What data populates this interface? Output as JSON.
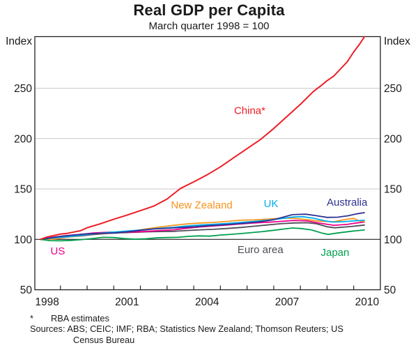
{
  "title": "Real GDP per Capita",
  "subtitle": "March quarter 1998 = 100",
  "y_axis_unit_label": "Index",
  "footnote": {
    "marker": "*",
    "text": "RBA estimates"
  },
  "sources": {
    "lines": [
      "Sources: ABS; CEIC; IMF; RBA; Statistics New Zealand; Thomson Reuters; US",
      "Census Bureau"
    ]
  },
  "chart_data": {
    "type": "line",
    "title": "Real GDP per Capita",
    "subtitle": "March quarter 1998 = 100",
    "xlabel": "",
    "ylabel": "Index",
    "legend": "inline-labels",
    "grid": "horizontal",
    "x_range": [
      1998.04,
      2011.0
    ],
    "ylim": [
      50,
      301.2
    ],
    "yticks": [
      50,
      100,
      150,
      200,
      250
    ],
    "gridlines_y": [
      150,
      200,
      250
    ],
    "baseline_y": 100,
    "xtick_years": [
      1999,
      2000,
      2001,
      2002,
      2003,
      2004,
      2005,
      2006,
      2007,
      2008,
      2009,
      2010
    ],
    "xtick_labels": [
      1998,
      2001,
      2004,
      2007,
      2010
    ],
    "series": [
      {
        "name": "Euro area",
        "label": "Euro area",
        "color": "#4d4e56",
        "label_anchor": [
          2006.5,
          90
        ],
        "points": [
          [
            1998.25,
            100
          ],
          [
            1998.75,
            101.3
          ],
          [
            1999.25,
            102.3
          ],
          [
            1999.75,
            103.5
          ],
          [
            2000.25,
            104.8
          ],
          [
            2000.75,
            105.8
          ],
          [
            2001.25,
            106.5
          ],
          [
            2001.75,
            107
          ],
          [
            2002.25,
            107.5
          ],
          [
            2002.75,
            107.8
          ],
          [
            2003.25,
            108
          ],
          [
            2003.75,
            108.8
          ],
          [
            2004.25,
            109.5
          ],
          [
            2004.75,
            110
          ],
          [
            2005.25,
            110.8
          ],
          [
            2005.75,
            111.8
          ],
          [
            2006.25,
            113
          ],
          [
            2006.75,
            114.3
          ],
          [
            2007.25,
            115.5
          ],
          [
            2007.75,
            116.3
          ],
          [
            2008.25,
            116.5
          ],
          [
            2008.6,
            115.5
          ],
          [
            2009.0,
            112.5
          ],
          [
            2009.3,
            111.5
          ],
          [
            2009.7,
            112.3
          ],
          [
            2010.0,
            113
          ],
          [
            2010.4,
            114.2
          ]
        ]
      },
      {
        "name": "US",
        "label": "US",
        "color": "#ec008c",
        "label_anchor": [
          1998.9,
          88.5
        ],
        "points": [
          [
            1998.25,
            100
          ],
          [
            1998.75,
            102.3
          ],
          [
            1999.25,
            103.8
          ],
          [
            1999.75,
            105
          ],
          [
            2000.25,
            106.3
          ],
          [
            2000.75,
            107
          ],
          [
            2001.25,
            107.3
          ],
          [
            2001.75,
            107.3
          ],
          [
            2002.25,
            108
          ],
          [
            2002.75,
            108.8
          ],
          [
            2003.25,
            109.5
          ],
          [
            2003.75,
            111
          ],
          [
            2004.25,
            112.3
          ],
          [
            2004.75,
            113.3
          ],
          [
            2005.25,
            114.3
          ],
          [
            2005.75,
            115.3
          ],
          [
            2006.25,
            116.3
          ],
          [
            2006.75,
            117
          ],
          [
            2007.25,
            117.8
          ],
          [
            2007.75,
            118.8
          ],
          [
            2008.25,
            118.3
          ],
          [
            2008.75,
            116
          ],
          [
            2009.25,
            114
          ],
          [
            2009.75,
            114.8
          ],
          [
            2010.1,
            116.3
          ],
          [
            2010.4,
            117.2
          ]
        ]
      },
      {
        "name": "New Zealand",
        "label": "New Zealand",
        "color": "#f7941d",
        "label_anchor": [
          2004.3,
          134
        ],
        "points": [
          [
            1998.25,
            100
          ],
          [
            1998.5,
            99.8
          ],
          [
            1998.75,
            100.3
          ],
          [
            1999.25,
            102
          ],
          [
            1999.75,
            104
          ],
          [
            2000.25,
            105.5
          ],
          [
            2000.75,
            106
          ],
          [
            2001.25,
            107
          ],
          [
            2001.75,
            108.5
          ],
          [
            2002.25,
            110.5
          ],
          [
            2002.75,
            112.3
          ],
          [
            2003.25,
            114
          ],
          [
            2003.75,
            115.3
          ],
          [
            2004.25,
            116.3
          ],
          [
            2004.75,
            116.8
          ],
          [
            2005.25,
            117.8
          ],
          [
            2005.75,
            119
          ],
          [
            2006.25,
            119.3
          ],
          [
            2006.75,
            120
          ],
          [
            2007.25,
            121
          ],
          [
            2007.75,
            121
          ],
          [
            2008.25,
            119.5
          ],
          [
            2008.75,
            118
          ],
          [
            2009.25,
            117.5
          ],
          [
            2009.75,
            120
          ],
          [
            2010.0,
            120.8
          ],
          [
            2010.2,
            118.5
          ],
          [
            2010.4,
            117.5
          ]
        ]
      },
      {
        "name": "UK",
        "label": "UK",
        "color": "#00aeef",
        "label_anchor": [
          2006.9,
          135.5
        ],
        "points": [
          [
            1998.25,
            100
          ],
          [
            1998.75,
            101.5
          ],
          [
            1999.25,
            102.5
          ],
          [
            1999.75,
            104
          ],
          [
            2000.25,
            105.5
          ],
          [
            2000.75,
            106.8
          ],
          [
            2001.25,
            107.8
          ],
          [
            2001.75,
            108.8
          ],
          [
            2002.25,
            109.8
          ],
          [
            2002.75,
            111
          ],
          [
            2003.25,
            112
          ],
          [
            2003.75,
            113.3
          ],
          [
            2004.25,
            114.3
          ],
          [
            2004.75,
            115
          ],
          [
            2005.25,
            115.8
          ],
          [
            2005.75,
            116.8
          ],
          [
            2006.25,
            117.8
          ],
          [
            2006.75,
            119
          ],
          [
            2007.25,
            120.5
          ],
          [
            2007.75,
            122.3
          ],
          [
            2008.1,
            122.5
          ],
          [
            2008.5,
            121
          ],
          [
            2008.9,
            118.5
          ],
          [
            2009.2,
            117.2
          ],
          [
            2009.6,
            117.5
          ],
          [
            2010.0,
            118.3
          ],
          [
            2010.4,
            119
          ]
        ]
      },
      {
        "name": "Australia",
        "label": "Australia",
        "color": "#2e3192",
        "label_anchor": [
          2009.75,
          137
        ],
        "points": [
          [
            1998.25,
            100
          ],
          [
            1998.5,
            101
          ],
          [
            1999.0,
            103
          ],
          [
            1999.5,
            104.3
          ],
          [
            2000.0,
            105.5
          ],
          [
            2000.5,
            106
          ],
          [
            2001.0,
            106.3
          ],
          [
            2001.5,
            107.5
          ],
          [
            2002.0,
            109
          ],
          [
            2002.5,
            110.3
          ],
          [
            2003.0,
            111
          ],
          [
            2003.5,
            111.8
          ],
          [
            2004.0,
            112.5
          ],
          [
            2004.5,
            113.5
          ],
          [
            2005.0,
            114.3
          ],
          [
            2005.5,
            115.2
          ],
          [
            2006.0,
            116.3
          ],
          [
            2006.5,
            117.5
          ],
          [
            2007.0,
            119.5
          ],
          [
            2007.7,
            124.5
          ],
          [
            2008.2,
            125
          ],
          [
            2008.6,
            123.5
          ],
          [
            2009.0,
            121.8
          ],
          [
            2009.4,
            122
          ],
          [
            2009.8,
            123.5
          ],
          [
            2010.1,
            125.3
          ],
          [
            2010.4,
            126.5
          ]
        ]
      },
      {
        "name": "Japan",
        "label": "Japan",
        "color": "#00a04e",
        "label_anchor": [
          2009.3,
          87
        ],
        "points": [
          [
            1998.25,
            100
          ],
          [
            1998.6,
            98.8
          ],
          [
            1999.0,
            98.6
          ],
          [
            1999.4,
            99
          ],
          [
            1999.8,
            99.8
          ],
          [
            2000.2,
            100.8
          ],
          [
            2000.6,
            102
          ],
          [
            2001.0,
            101.8
          ],
          [
            2001.4,
            100.8
          ],
          [
            2001.8,
            100.2
          ],
          [
            2002.2,
            100.6
          ],
          [
            2002.6,
            101.5
          ],
          [
            2003.0,
            101.8
          ],
          [
            2003.4,
            102
          ],
          [
            2003.8,
            103
          ],
          [
            2004.2,
            103.5
          ],
          [
            2004.6,
            103.2
          ],
          [
            2005.0,
            104.3
          ],
          [
            2005.4,
            105
          ],
          [
            2005.8,
            105.8
          ],
          [
            2006.2,
            106.8
          ],
          [
            2006.6,
            107.8
          ],
          [
            2007.0,
            109
          ],
          [
            2007.4,
            110.3
          ],
          [
            2007.7,
            111.3
          ],
          [
            2008.0,
            110.8
          ],
          [
            2008.4,
            109.5
          ],
          [
            2008.8,
            106.3
          ],
          [
            2009.05,
            104.9
          ],
          [
            2009.3,
            106
          ],
          [
            2009.6,
            107
          ],
          [
            2010.0,
            108.3
          ],
          [
            2010.4,
            109.3
          ]
        ]
      },
      {
        "name": "China",
        "label": "China*",
        "color": "#ee1c25",
        "label_anchor": [
          2006.1,
          228
        ],
        "points": [
          [
            1998.25,
            100
          ],
          [
            1998.5,
            102.3
          ],
          [
            1998.75,
            103.8
          ],
          [
            1999.0,
            105.3
          ],
          [
            1999.25,
            106
          ],
          [
            1999.5,
            107.3
          ],
          [
            1999.75,
            108.5
          ],
          [
            2000.0,
            111.5
          ],
          [
            2000.5,
            115.5
          ],
          [
            2001.0,
            120
          ],
          [
            2001.5,
            124
          ],
          [
            2002.0,
            128.5
          ],
          [
            2002.5,
            133
          ],
          [
            2003.0,
            140
          ],
          [
            2003.5,
            150.5
          ],
          [
            2004.0,
            157
          ],
          [
            2004.5,
            164
          ],
          [
            2005.0,
            172
          ],
          [
            2005.5,
            181
          ],
          [
            2006.0,
            190
          ],
          [
            2006.5,
            199
          ],
          [
            2007.0,
            210
          ],
          [
            2007.5,
            222
          ],
          [
            2008.0,
            234
          ],
          [
            2008.5,
            247
          ],
          [
            2008.75,
            252
          ],
          [
            2009.0,
            257.5
          ],
          [
            2009.25,
            262
          ],
          [
            2009.5,
            269
          ],
          [
            2009.75,
            276
          ],
          [
            2010.0,
            286
          ],
          [
            2010.2,
            293
          ],
          [
            2010.4,
            301
          ]
        ]
      }
    ]
  }
}
